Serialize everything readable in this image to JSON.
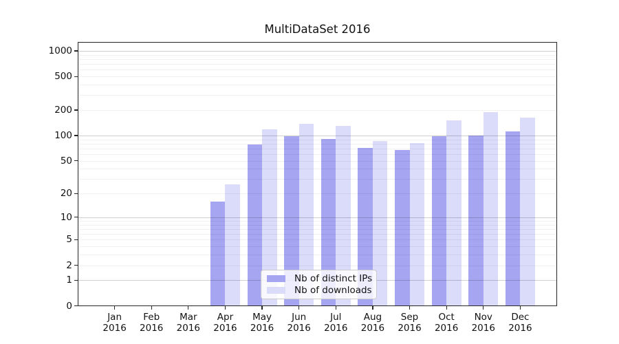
{
  "chart_data": {
    "type": "bar",
    "title": "MultiDataSet 2016",
    "categories": [
      "Jan 2016",
      "Feb 2016",
      "Mar 2016",
      "Apr 2016",
      "May 2016",
      "Jun 2016",
      "Jul 2016",
      "Aug 2016",
      "Sep 2016",
      "Oct 2016",
      "Nov 2016",
      "Dec 2016"
    ],
    "series": [
      {
        "name": "Nb of distinct IPs",
        "color": "#a5a5f2",
        "values": [
          0,
          0,
          0,
          16,
          79,
          98,
          91,
          71,
          67,
          98,
          100,
          112
        ]
      },
      {
        "name": "Nb of downloads",
        "color": "#dbdbfa",
        "values": [
          0,
          0,
          0,
          26,
          118,
          138,
          131,
          86,
          81,
          152,
          190,
          163
        ]
      }
    ],
    "y_axis": {
      "scale": "log1p",
      "range": [
        0,
        1000
      ],
      "ticks": [
        0,
        1,
        2,
        5,
        10,
        20,
        50,
        100,
        200,
        500,
        1000
      ],
      "grid": true,
      "major_gridlines": [
        1,
        10,
        100,
        1000
      ]
    },
    "x_axis": {
      "ticks_per_category": true,
      "label_lines": 2
    },
    "legend": {
      "position": "inside-bottom-center"
    }
  }
}
